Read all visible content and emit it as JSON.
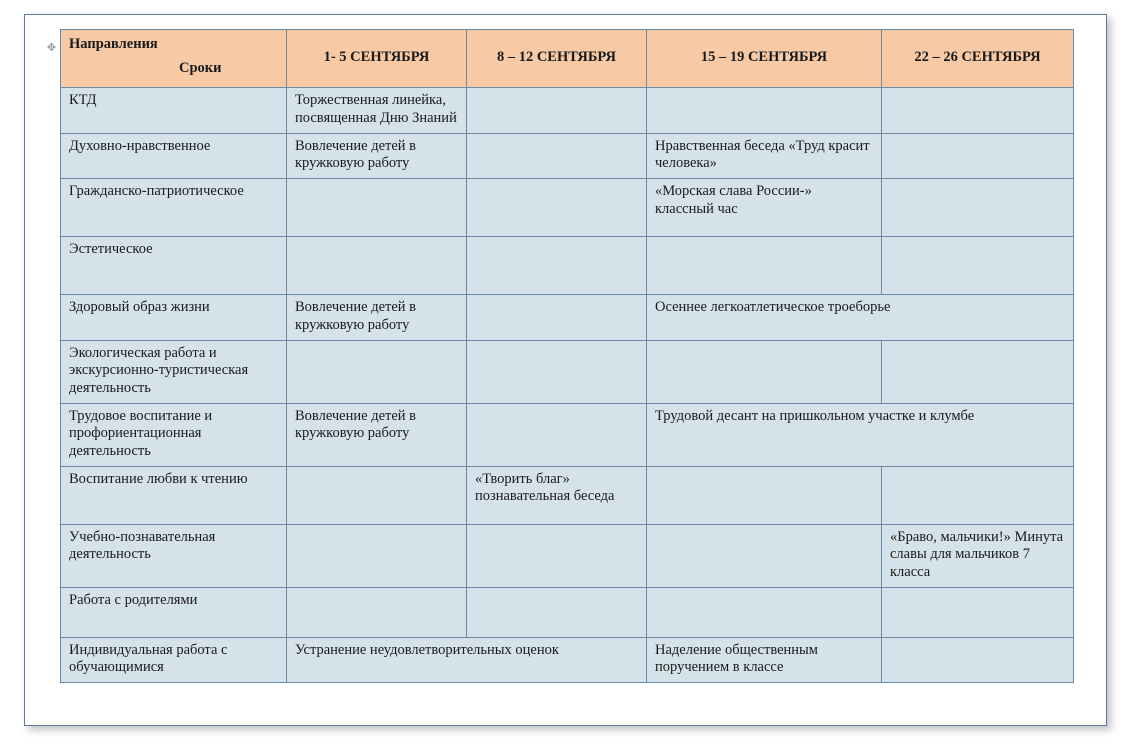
{
  "colors": {
    "header_bg": "#f7caa5",
    "body_bg": "#d5e2ea",
    "border": "#6b8aa8",
    "frame_border": "#5a7ca0"
  },
  "table": {
    "header": {
      "col0_line1": "Направления",
      "col0_line2": "Сроки",
      "col1": "1- 5 СЕНТЯБРЯ",
      "col2": "8 – 12 СЕНТЯБРЯ",
      "col3": "15 – 19 СЕНТЯБРЯ",
      "col4": "22 – 26 СЕНТЯБРЯ"
    },
    "rows": [
      {
        "dir": "КТД",
        "c1": "Торжественная линейка, посвященная Дню Знаний",
        "c2": "",
        "c3": "",
        "c4": ""
      },
      {
        "dir": "Духовно-нравственное",
        "c1": "Вовлечение детей в кружковую работу",
        "c2": "",
        "c3": "Нравственная беседа «Труд красит человека»",
        "c4": ""
      },
      {
        "dir": "Гражданско-патриотическое",
        "c1": "",
        "c2": "",
        "c3": "«Морская слава России-» классный час",
        "c4": ""
      },
      {
        "dir": "Эстетическое",
        "c1": "",
        "c2": "",
        "c3": "",
        "c4": ""
      },
      {
        "dir": "Здоровый образ жизни",
        "c1": "Вовлечение детей в кружковую работу",
        "c2": "",
        "c3_span2": "Осеннее легкоатлетическое троеборье"
      },
      {
        "dir": "Экологическая работа и экскурсионно-туристическая деятельность",
        "c1": "",
        "c2": "",
        "c3": "",
        "c4": ""
      },
      {
        "dir": "Трудовое воспитание и профориентационная деятельность",
        "c1": "Вовлечение детей в кружковую работу",
        "c2": "",
        "c3_span2": "Трудовой десант на пришкольном участке и клумбе"
      },
      {
        "dir": "Воспитание любви к чтению",
        "c1": "",
        "c2": "«Творить благ» познавательная беседа",
        "c3": "",
        "c4": ""
      },
      {
        "dir": "Учебно-познавательная деятельность",
        "c1": "",
        "c2": "",
        "c3": "",
        "c4": "«Браво, мальчики!» Минута славы для мальчиков 7 класса"
      },
      {
        "dir": "Работа с родителями",
        "c1": "",
        "c2": "",
        "c3": "",
        "c4": ""
      },
      {
        "dir": "Индивидуальная работа с обучающимися",
        "c1_span2": "Устранение неудовлетворительных оценок",
        "c3": "Наделение общественным поручением в классе",
        "c4": ""
      }
    ]
  }
}
